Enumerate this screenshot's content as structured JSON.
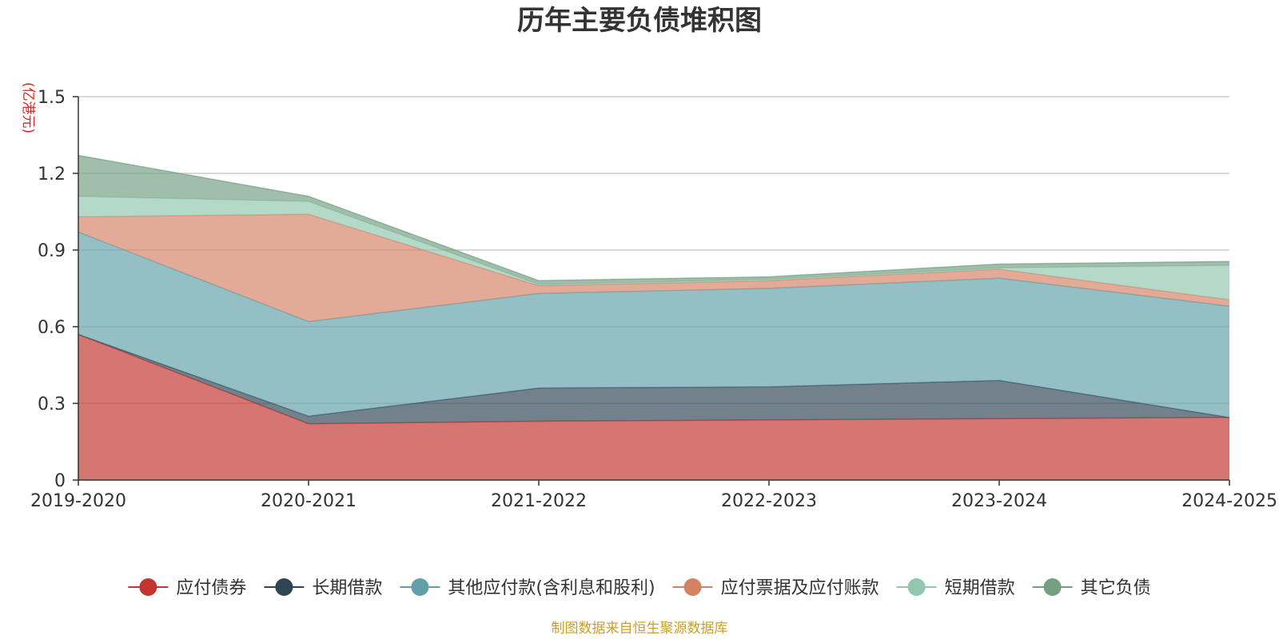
{
  "chart_data": {
    "type": "area",
    "stacked": true,
    "title": "历年主要负债堆积图",
    "y_unit": "(亿港元)",
    "categories": [
      "2019-2020",
      "2020-2021",
      "2021-2022",
      "2022-2023",
      "2023-2024",
      "2024-2025"
    ],
    "ylim": [
      0,
      1.5
    ],
    "yticks": [
      "0",
      "0.3",
      "0.6",
      "0.9",
      "1.2",
      "1.5"
    ],
    "ytick_values": [
      0,
      0.3,
      0.6,
      0.9,
      1.2,
      1.5
    ],
    "grid": true,
    "legend_position": "bottom",
    "series": [
      {
        "name": "应付债券",
        "color": "#c23531",
        "values": [
          0.57,
          0.22,
          0.23,
          0.235,
          0.24,
          0.245
        ]
      },
      {
        "name": "长期借款",
        "color": "#2f4554",
        "values": [
          0.0,
          0.03,
          0.13,
          0.13,
          0.15,
          0.0
        ]
      },
      {
        "name": "其他应付款(含利息和股利)",
        "color": "#61a0a8",
        "values": [
          0.4,
          0.37,
          0.37,
          0.385,
          0.4,
          0.435
        ]
      },
      {
        "name": "应付票据及应付账款",
        "color": "#d48265",
        "values": [
          0.06,
          0.42,
          0.03,
          0.03,
          0.035,
          0.025
        ]
      },
      {
        "name": "短期借款",
        "color": "#91c7ae",
        "values": [
          0.08,
          0.05,
          0.005,
          0.005,
          0.005,
          0.135
        ]
      },
      {
        "name": "其它负债",
        "color": "#749f83",
        "values": [
          0.16,
          0.02,
          0.015,
          0.01,
          0.015,
          0.015
        ]
      }
    ]
  },
  "footer": {
    "source": "制图数据来自恒生聚源数据库"
  }
}
